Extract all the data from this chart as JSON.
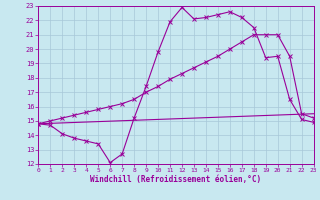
{
  "xlabel": "Windchill (Refroidissement éolien,°C)",
  "xlim": [
    0,
    23
  ],
  "ylim": [
    12,
    23
  ],
  "xticks": [
    0,
    1,
    2,
    3,
    4,
    5,
    6,
    7,
    8,
    9,
    10,
    11,
    12,
    13,
    14,
    15,
    16,
    17,
    18,
    19,
    20,
    21,
    22,
    23
  ],
  "yticks": [
    12,
    13,
    14,
    15,
    16,
    17,
    18,
    19,
    20,
    21,
    22,
    23
  ],
  "bg_color": "#c8e8f0",
  "line_color": "#990099",
  "grid_color": "#a8c8d8",
  "curve1_x": [
    0,
    1,
    2,
    3,
    4,
    5,
    6,
    7,
    8,
    9,
    10,
    11,
    12,
    13,
    14,
    15,
    16,
    17,
    18,
    19,
    20,
    21,
    22,
    23
  ],
  "curve1_y": [
    14.8,
    14.7,
    14.1,
    13.8,
    13.6,
    13.4,
    12.1,
    12.7,
    15.2,
    17.4,
    19.8,
    21.9,
    22.9,
    22.1,
    22.2,
    22.4,
    22.6,
    22.2,
    21.5,
    19.4,
    19.5,
    16.5,
    15.1,
    14.9
  ],
  "curve2_x": [
    0,
    1,
    2,
    3,
    4,
    5,
    6,
    7,
    8,
    9,
    10,
    11,
    12,
    13,
    14,
    15,
    16,
    17,
    18,
    19,
    20,
    21,
    22,
    23
  ],
  "curve2_y": [
    14.8,
    15.0,
    15.2,
    15.4,
    15.6,
    15.8,
    16.0,
    16.2,
    16.5,
    17.0,
    17.4,
    17.9,
    18.3,
    18.7,
    19.1,
    19.5,
    20.0,
    20.5,
    21.0,
    21.0,
    21.0,
    19.5,
    15.5,
    15.2
  ],
  "regline_x": [
    0,
    23
  ],
  "regline_y": [
    14.8,
    15.5
  ]
}
